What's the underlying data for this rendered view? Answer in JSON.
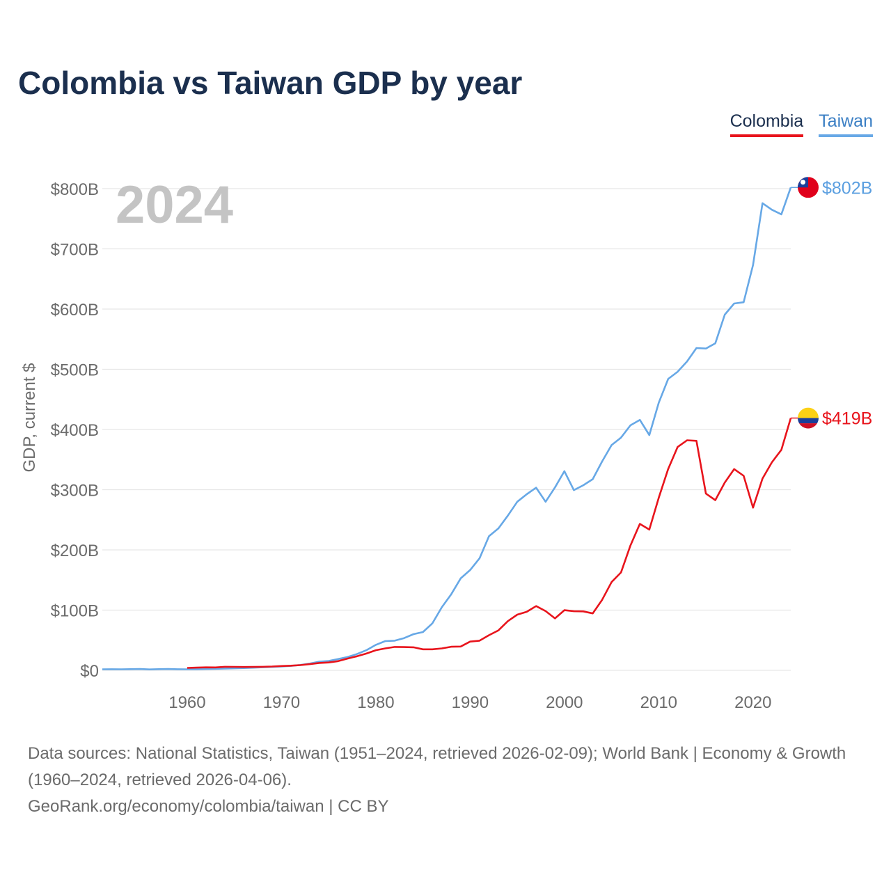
{
  "page": {
    "title": "Colombia vs Taiwan GDP by year",
    "source_line": "Data sources: National Statistics, Taiwan (1951–2024, retrieved 2026-02-09); World Bank | Economy & Growth (1960–2024, retrieved 2026-04-06).",
    "credit_line": "GeoRank.org/economy/colombia/taiwan | CC BY"
  },
  "legend": {
    "colombia_label": "Colombia",
    "taiwan_label": "Taiwan"
  },
  "colors": {
    "colombia": "#e8141c",
    "taiwan": "#67a8e6",
    "grid": "#e6e6e6",
    "axis_text": "#6b6b6b",
    "year_watermark": "#c4c4c4"
  },
  "chart_data": {
    "type": "line",
    "title": "Colombia vs Taiwan GDP by year",
    "ylabel": "GDP, current $",
    "xlabel": "",
    "year_label": "2024",
    "xlim": [
      1951,
      2024
    ],
    "ylim": [
      0,
      840
    ],
    "y_ticks": [
      0,
      100,
      200,
      300,
      400,
      500,
      600,
      700,
      800
    ],
    "y_tick_labels": [
      "$0",
      "$100B",
      "$200B",
      "$300B",
      "$400B",
      "$500B",
      "$600B",
      "$700B",
      "$800B"
    ],
    "x_ticks": [
      1960,
      1970,
      1980,
      1990,
      2000,
      2010,
      2020
    ],
    "x_tick_labels": [
      "1960",
      "1970",
      "1980",
      "1990",
      "2000",
      "2010",
      "2020"
    ],
    "units": "billions of current US$",
    "series": [
      {
        "name": "Taiwan",
        "end_label": "$802B",
        "start_year": 1951,
        "values": [
          1.7,
          1.8,
          1.7,
          2.0,
          2.2,
          1.5,
          2.0,
          2.2,
          1.8,
          1.7,
          1.8,
          2.2,
          2.6,
          3.0,
          3.4,
          3.8,
          4.4,
          5.1,
          5.7,
          6.5,
          7.4,
          8.9,
          11.2,
          14.4,
          15.6,
          18.7,
          22.1,
          27.0,
          33.4,
          42.3,
          48.5,
          49.2,
          53.5,
          60.1,
          63.6,
          78.2,
          104.7,
          126.5,
          152.7,
          166.6,
          186.0,
          222.9,
          235.7,
          257.0,
          280.0,
          292.5,
          303.3,
          280.0,
          303.8,
          330.7,
          299.3,
          307.4,
          317.4,
          346.9,
          374.1,
          386.5,
          406.9,
          415.9,
          390.8,
          444.3,
          483.9,
          495.8,
          512.9,
          535.3,
          534.5,
          543.1,
          590.7,
          609.2,
          611.3,
          673.2,
          775.8,
          765.0,
          757.3,
          802.0
        ]
      },
      {
        "name": "Colombia",
        "end_label": "$419B",
        "start_year": 1960,
        "values": [
          4.0,
          4.5,
          5.0,
          4.8,
          5.9,
          5.8,
          5.5,
          5.7,
          5.9,
          6.4,
          7.2,
          7.8,
          8.7,
          10.3,
          12.2,
          13.1,
          15.3,
          19.5,
          23.3,
          27.9,
          33.4,
          36.4,
          38.9,
          38.6,
          38.3,
          34.9,
          34.9,
          36.4,
          39.2,
          39.5,
          47.8,
          49.2,
          58.4,
          66.4,
          81.7,
          92.5,
          97.2,
          106.7,
          98.4,
          86.2,
          99.9,
          98.2,
          97.9,
          94.6,
          117.1,
          146.6,
          162.6,
          207.4,
          243.2,
          233.8,
          286.5,
          334.5,
          370.9,
          382.1,
          381.2,
          293.5,
          282.7,
          311.9,
          334.2,
          323.1,
          270.2,
          318.5,
          345.6,
          366.2,
          419.0
        ]
      }
    ]
  }
}
